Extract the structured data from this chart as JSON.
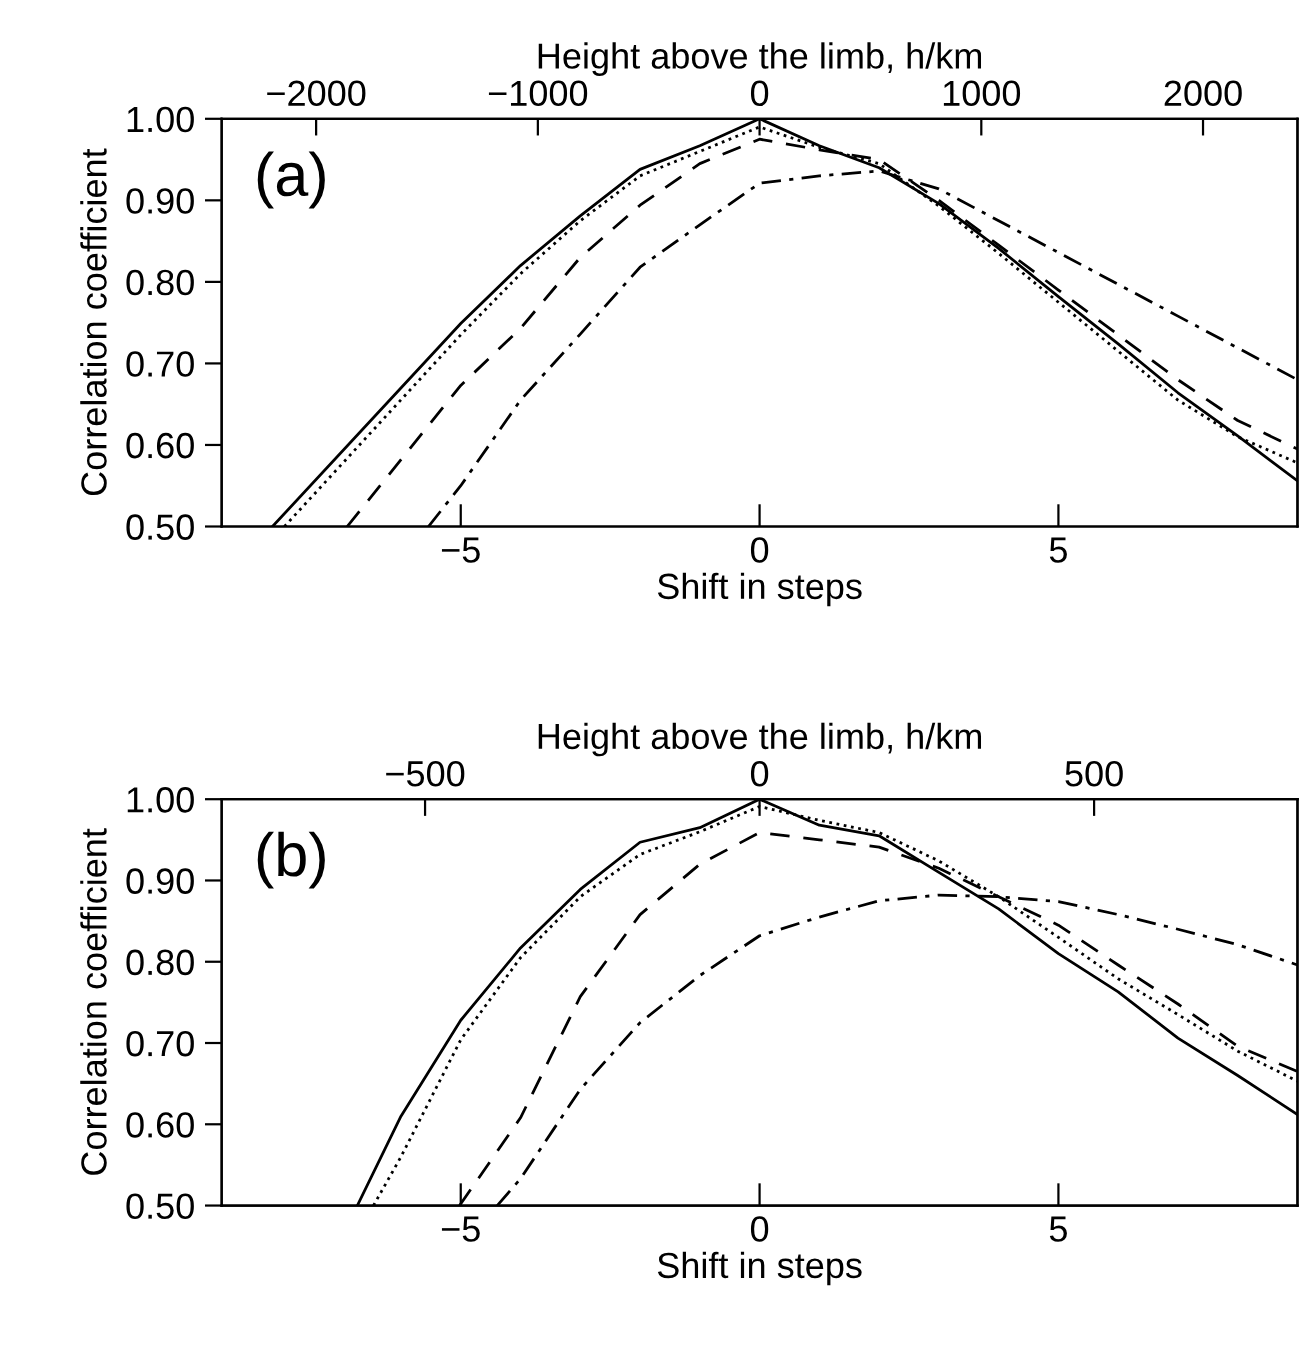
{
  "chart_data": [
    {
      "type": "line",
      "xlabel": "Shift in steps",
      "ylabel": "Correlation coefficient",
      "x2label": "Height above the limb, h/km",
      "xlim": [
        -9,
        9
      ],
      "xticks": [
        {
          "value": -5,
          "label": "−5"
        },
        0,
        5
      ],
      "x2lim": [
        -2426,
        2426
      ],
      "x2ticks": [
        {
          "value": -2000,
          "label": "−2000"
        },
        {
          "value": -1000,
          "label": "−1000"
        },
        0,
        1000,
        2000
      ],
      "ylim": [
        0.5,
        1.0
      ],
      "yticks": [
        {
          "value": 0.5,
          "label": "0.50"
        },
        {
          "value": 0.6,
          "label": "0.60"
        },
        {
          "value": 0.7,
          "label": "0.70"
        },
        {
          "value": 0.8,
          "label": "0.80"
        },
        {
          "value": 0.9,
          "label": "0.90"
        },
        {
          "value": 1.0,
          "label": "1.00"
        }
      ],
      "annotations": [
        "(a)"
      ],
      "grid": false,
      "legend": false,
      "series": [
        {
          "color": "#000000",
          "line_style": "solid",
          "x": [
            -8.15,
            -5,
            -4,
            -3,
            -2,
            -1,
            0,
            1,
            2,
            3,
            4,
            5,
            6,
            7,
            8,
            9
          ],
          "values": [
            0.5,
            0.749,
            0.82,
            0.881,
            0.938,
            0.967,
            1.0,
            0.967,
            0.94,
            0.896,
            0.841,
            0.782,
            0.724,
            0.664,
            0.611,
            0.556
          ]
        },
        {
          "color": "#000000",
          "line_style": "dotted",
          "x": [
            -7.95,
            -5,
            -4,
            -3,
            -2,
            -1,
            0,
            1,
            2,
            3,
            4,
            5,
            6,
            7,
            8,
            9
          ],
          "values": [
            0.5,
            0.735,
            0.81,
            0.875,
            0.93,
            0.96,
            0.99,
            0.965,
            0.945,
            0.893,
            0.835,
            0.775,
            0.715,
            0.655,
            0.61,
            0.578
          ]
        },
        {
          "color": "#000000",
          "line_style": "dashed",
          "x": [
            -6.9,
            -5,
            -4,
            -3,
            -2,
            -1,
            0,
            1,
            2,
            3,
            4,
            5,
            6,
            7,
            8,
            9
          ],
          "values": [
            0.5,
            0.673,
            0.743,
            0.83,
            0.894,
            0.945,
            0.975,
            0.962,
            0.95,
            0.9,
            0.845,
            0.79,
            0.735,
            0.68,
            0.63,
            0.595
          ]
        },
        {
          "color": "#000000",
          "line_style": "dashdot",
          "x": [
            -5.54,
            -5,
            -4,
            -3,
            -2,
            -1,
            0,
            1,
            2,
            3,
            4,
            5,
            6,
            7,
            8,
            9
          ],
          "values": [
            0.5,
            0.55,
            0.655,
            0.736,
            0.818,
            0.87,
            0.921,
            0.93,
            0.936,
            0.914,
            0.875,
            0.836,
            0.797,
            0.758,
            0.719,
            0.68
          ]
        }
      ]
    },
    {
      "type": "line",
      "xlabel": "Shift in steps",
      "ylabel": "Correlation coefficient",
      "x2label": "Height above the limb, h/km",
      "xlim": [
        -9,
        9
      ],
      "xticks": [
        {
          "value": -5,
          "label": "−5"
        },
        0,
        5
      ],
      "x2lim": [
        -804,
        804
      ],
      "x2ticks": [
        {
          "value": -500,
          "label": "−500"
        },
        0,
        500
      ],
      "ylim": [
        0.5,
        1.0
      ],
      "yticks": [
        {
          "value": 0.5,
          "label": "0.50"
        },
        {
          "value": 0.6,
          "label": "0.60"
        },
        {
          "value": 0.7,
          "label": "0.70"
        },
        {
          "value": 0.8,
          "label": "0.80"
        },
        {
          "value": 0.9,
          "label": "0.90"
        },
        {
          "value": 1.0,
          "label": "1.00"
        }
      ],
      "annotations": [
        "(b)"
      ],
      "grid": false,
      "legend": false,
      "series": [
        {
          "color": "#000000",
          "line_style": "solid",
          "x": [
            -6.73,
            -6,
            -5,
            -4,
            -3,
            -2,
            -1,
            0,
            1,
            2,
            3,
            4,
            5,
            6,
            7,
            8,
            9
          ],
          "values": [
            0.5,
            0.61,
            0.728,
            0.817,
            0.889,
            0.947,
            0.965,
            1.0,
            0.968,
            0.955,
            0.91,
            0.865,
            0.81,
            0.763,
            0.706,
            0.66,
            0.612
          ]
        },
        {
          "color": "#000000",
          "line_style": "dotted",
          "x": [
            -6.46,
            -6,
            -5,
            -4,
            -3,
            -2,
            -1,
            0,
            1,
            2,
            3,
            4,
            5,
            6,
            7,
            8,
            9
          ],
          "values": [
            0.5,
            0.56,
            0.704,
            0.805,
            0.88,
            0.932,
            0.96,
            0.991,
            0.974,
            0.959,
            0.924,
            0.88,
            0.83,
            0.779,
            0.735,
            0.69,
            0.653
          ]
        },
        {
          "color": "#000000",
          "line_style": "dashed",
          "x": [
            -5.02,
            -4,
            -3,
            -2,
            -1,
            0,
            1,
            2,
            3,
            4,
            5,
            6,
            7,
            8,
            9
          ],
          "values": [
            0.5,
            0.608,
            0.757,
            0.858,
            0.92,
            0.959,
            0.95,
            0.941,
            0.915,
            0.88,
            0.845,
            0.796,
            0.748,
            0.696,
            0.665
          ]
        },
        {
          "color": "#000000",
          "line_style": "dashdot",
          "x": [
            -4.39,
            -4,
            -3,
            -2,
            -1,
            0,
            1,
            2,
            3,
            4,
            5,
            6,
            7,
            8,
            9
          ],
          "values": [
            0.5,
            0.533,
            0.643,
            0.725,
            0.783,
            0.832,
            0.855,
            0.875,
            0.882,
            0.88,
            0.874,
            0.858,
            0.84,
            0.821,
            0.796
          ]
        }
      ]
    }
  ]
}
